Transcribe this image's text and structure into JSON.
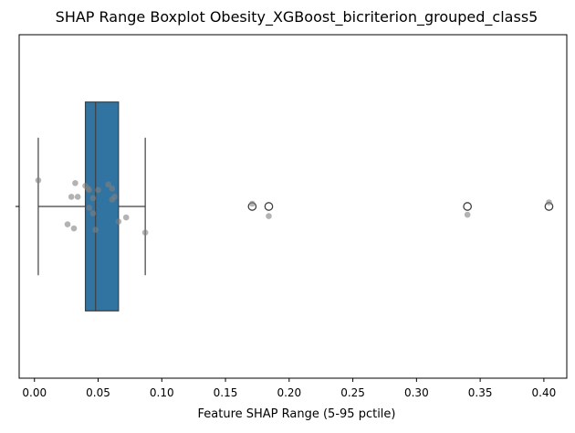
{
  "chart_data": {
    "type": "boxplot",
    "title": "SHAP Range Boxplot Obesity_XGBoost_bicriterion_grouped_class5",
    "xlabel": "Feature SHAP Range (5-95 pctile)",
    "ylabel": "",
    "xlim": [
      -0.012,
      0.418
    ],
    "x_ticks": [
      0.0,
      0.05,
      0.1,
      0.15,
      0.2,
      0.25,
      0.3,
      0.35,
      0.4
    ],
    "x_tick_labels": [
      "0.00",
      "0.05",
      "0.10",
      "0.15",
      "0.20",
      "0.25",
      "0.30",
      "0.35",
      "0.40"
    ],
    "box": {
      "whisker_low": 0.003,
      "q1": 0.04,
      "median": 0.048,
      "q3": 0.066,
      "whisker_high": 0.087,
      "fill_color": "#3274a1"
    },
    "outliers": [
      0.171,
      0.184,
      0.34,
      0.404
    ],
    "strip_points": [
      {
        "x": 0.003,
        "y": 0.19
      },
      {
        "x": 0.032,
        "y": 0.17
      },
      {
        "x": 0.04,
        "y": 0.15
      },
      {
        "x": 0.058,
        "y": 0.16
      },
      {
        "x": 0.043,
        "y": 0.12
      },
      {
        "x": 0.042,
        "y": 0.13
      },
      {
        "x": 0.05,
        "y": 0.12
      },
      {
        "x": 0.061,
        "y": 0.13
      },
      {
        "x": 0.063,
        "y": 0.07
      },
      {
        "x": 0.029,
        "y": 0.07
      },
      {
        "x": 0.034,
        "y": 0.07
      },
      {
        "x": 0.046,
        "y": 0.06
      },
      {
        "x": 0.061,
        "y": 0.05
      },
      {
        "x": 0.043,
        "y": -0.01
      },
      {
        "x": 0.046,
        "y": -0.05
      },
      {
        "x": 0.072,
        "y": -0.08
      },
      {
        "x": 0.066,
        "y": -0.11
      },
      {
        "x": 0.026,
        "y": -0.13
      },
      {
        "x": 0.031,
        "y": -0.16
      },
      {
        "x": 0.048,
        "y": -0.17
      },
      {
        "x": 0.087,
        "y": -0.19
      },
      {
        "x": 0.171,
        "y": 0.02
      },
      {
        "x": 0.184,
        "y": -0.07
      },
      {
        "x": 0.34,
        "y": -0.06
      },
      {
        "x": 0.404,
        "y": 0.03
      }
    ],
    "strip_color": "#808080",
    "y_tick_labels": [
      ""
    ]
  }
}
